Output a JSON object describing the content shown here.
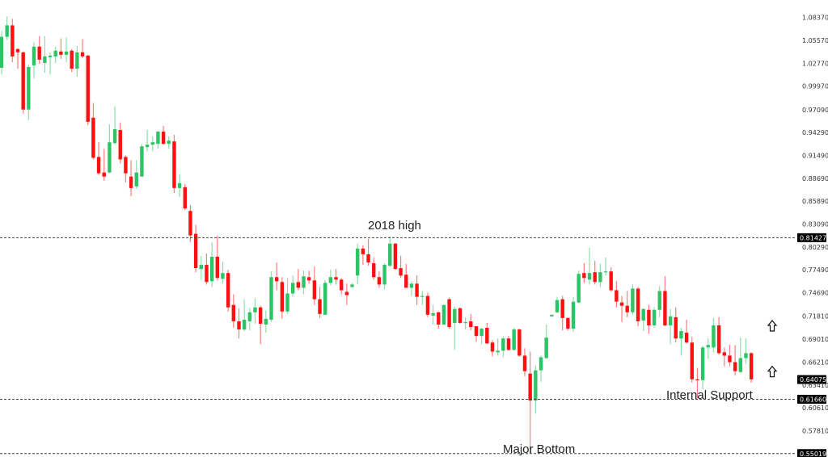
{
  "chart_data": {
    "type": "candlestick",
    "title": "",
    "xlabel": "",
    "ylabel": "",
    "ylim": [
      0.546,
      1.105
    ],
    "grid": false,
    "colors": {
      "up": "#2ec466",
      "down": "#ff1010",
      "level_line": "#444444",
      "label_bg": "#000000"
    },
    "y_ticks": [
      "1.08370",
      "1.05570",
      "1.02770",
      "0.99970",
      "0.97090",
      "0.94290",
      "0.91490",
      "0.88690",
      "0.85890",
      "0.83090",
      "0.80290",
      "0.77490",
      "0.74690",
      "0.71810",
      "0.69010",
      "0.66210",
      "0.63410",
      "0.60610",
      "0.57810"
    ],
    "levels": [
      {
        "value": 0.81427,
        "label": "0.81427",
        "annotation": "2018 high"
      },
      {
        "value": 0.6166,
        "label": "0.61660",
        "annotation": "Internal Support"
      },
      {
        "value": 0.55019,
        "label": "0.55019",
        "annotation": "Major Bottom"
      }
    ],
    "current_price": {
      "value": 0.64075,
      "label": "0.64075"
    },
    "markers": [
      {
        "type": "up-arrow",
        "price": 0.706
      },
      {
        "type": "up-arrow",
        "price": 0.65
      }
    ],
    "ohlc_columns": [
      "open",
      "high",
      "low",
      "close"
    ],
    "candles": [
      [
        1.022,
        1.067,
        1.014,
        1.06
      ],
      [
        1.06,
        1.085,
        1.056,
        1.074
      ],
      [
        1.074,
        1.082,
        1.029,
        1.036
      ],
      [
        1.045,
        1.046,
        1.021,
        1.041
      ],
      [
        1.041,
        1.042,
        0.966,
        0.971
      ],
      [
        0.971,
        1.026,
        0.958,
        1.023
      ],
      [
        1.025,
        1.053,
        1.009,
        1.048
      ],
      [
        1.048,
        1.061,
        1.027,
        1.032
      ],
      [
        1.028,
        1.061,
        1.016,
        1.036
      ],
      [
        1.035,
        1.041,
        1.014,
        1.037
      ],
      [
        1.036,
        1.048,
        1.028,
        1.043
      ],
      [
        1.042,
        1.058,
        1.033,
        1.038
      ],
      [
        1.038,
        1.059,
        1.029,
        1.042
      ],
      [
        1.043,
        1.045,
        1.017,
        1.021
      ],
      [
        1.021,
        1.049,
        1.011,
        1.041
      ],
      [
        1.041,
        1.057,
        1.034,
        1.036
      ],
      [
        1.037,
        1.038,
        0.952,
        0.956
      ],
      [
        0.961,
        0.979,
        0.91,
        0.912
      ],
      [
        0.913,
        0.931,
        0.891,
        0.893
      ],
      [
        0.894,
        0.923,
        0.884,
        0.889
      ],
      [
        0.894,
        0.953,
        0.893,
        0.931
      ],
      [
        0.93,
        0.975,
        0.928,
        0.947
      ],
      [
        0.946,
        0.955,
        0.905,
        0.91
      ],
      [
        0.913,
        0.915,
        0.882,
        0.893
      ],
      [
        0.889,
        0.909,
        0.865,
        0.875
      ],
      [
        0.877,
        0.909,
        0.874,
        0.894
      ],
      [
        0.889,
        0.929,
        0.889,
        0.926
      ],
      [
        0.925,
        0.946,
        0.92,
        0.928
      ],
      [
        0.928,
        0.938,
        0.92,
        0.931
      ],
      [
        0.929,
        0.945,
        0.923,
        0.944
      ],
      [
        0.944,
        0.951,
        0.928,
        0.929
      ],
      [
        0.929,
        0.938,
        0.923,
        0.933
      ],
      [
        0.932,
        0.94,
        0.869,
        0.875
      ],
      [
        0.875,
        0.892,
        0.864,
        0.881
      ],
      [
        0.876,
        0.88,
        0.848,
        0.85
      ],
      [
        0.847,
        0.854,
        0.809,
        0.817
      ],
      [
        0.819,
        0.83,
        0.772,
        0.777
      ],
      [
        0.776,
        0.792,
        0.763,
        0.781
      ],
      [
        0.781,
        0.795,
        0.757,
        0.76
      ],
      [
        0.761,
        0.809,
        0.754,
        0.791
      ],
      [
        0.791,
        0.817,
        0.762,
        0.765
      ],
      [
        0.764,
        0.785,
        0.758,
        0.771
      ],
      [
        0.771,
        0.775,
        0.724,
        0.729
      ],
      [
        0.732,
        0.745,
        0.704,
        0.712
      ],
      [
        0.712,
        0.728,
        0.691,
        0.702
      ],
      [
        0.702,
        0.739,
        0.7,
        0.714
      ],
      [
        0.712,
        0.728,
        0.701,
        0.723
      ],
      [
        0.723,
        0.74,
        0.709,
        0.729
      ],
      [
        0.729,
        0.731,
        0.684,
        0.709
      ],
      [
        0.708,
        0.725,
        0.698,
        0.715
      ],
      [
        0.714,
        0.773,
        0.711,
        0.766
      ],
      [
        0.766,
        0.784,
        0.75,
        0.761
      ],
      [
        0.76,
        0.766,
        0.715,
        0.724
      ],
      [
        0.724,
        0.765,
        0.721,
        0.746
      ],
      [
        0.746,
        0.768,
        0.742,
        0.759
      ],
      [
        0.76,
        0.776,
        0.75,
        0.753
      ],
      [
        0.753,
        0.774,
        0.745,
        0.767
      ],
      [
        0.766,
        0.774,
        0.758,
        0.762
      ],
      [
        0.762,
        0.779,
        0.732,
        0.739
      ],
      [
        0.739,
        0.754,
        0.716,
        0.721
      ],
      [
        0.72,
        0.762,
        0.72,
        0.759
      ],
      [
        0.759,
        0.775,
        0.756,
        0.766
      ],
      [
        0.766,
        0.776,
        0.757,
        0.763
      ],
      [
        0.763,
        0.765,
        0.745,
        0.75
      ],
      [
        0.748,
        0.758,
        0.732,
        0.744
      ],
      [
        0.754,
        0.759,
        0.753,
        0.757
      ],
      [
        0.768,
        0.807,
        0.757,
        0.801
      ],
      [
        0.801,
        0.805,
        0.781,
        0.794
      ],
      [
        0.794,
        0.813,
        0.78,
        0.784
      ],
      [
        0.783,
        0.79,
        0.763,
        0.766
      ],
      [
        0.766,
        0.773,
        0.753,
        0.757
      ],
      [
        0.757,
        0.783,
        0.751,
        0.781
      ],
      [
        0.78,
        0.816,
        0.778,
        0.807
      ],
      [
        0.807,
        0.808,
        0.775,
        0.776
      ],
      [
        0.777,
        0.792,
        0.765,
        0.768
      ],
      [
        0.769,
        0.782,
        0.753,
        0.753
      ],
      [
        0.753,
        0.761,
        0.743,
        0.758
      ],
      [
        0.758,
        0.768,
        0.732,
        0.742
      ],
      [
        0.742,
        0.749,
        0.732,
        0.743
      ],
      [
        0.743,
        0.747,
        0.717,
        0.72
      ],
      [
        0.719,
        0.732,
        0.708,
        0.722
      ],
      [
        0.723,
        0.724,
        0.703,
        0.708
      ],
      [
        0.708,
        0.732,
        0.707,
        0.732
      ],
      [
        0.739,
        0.741,
        0.703,
        0.705
      ],
      [
        0.71,
        0.73,
        0.677,
        0.727
      ],
      [
        0.728,
        0.729,
        0.709,
        0.71
      ],
      [
        0.71,
        0.717,
        0.702,
        0.711
      ],
      [
        0.712,
        0.721,
        0.701,
        0.705
      ],
      [
        0.706,
        0.706,
        0.687,
        0.694
      ],
      [
        0.694,
        0.704,
        0.684,
        0.703
      ],
      [
        0.704,
        0.71,
        0.684,
        0.685
      ],
      [
        0.686,
        0.689,
        0.669,
        0.675
      ],
      [
        0.674,
        0.691,
        0.67,
        0.676
      ],
      [
        0.676,
        0.694,
        0.668,
        0.691
      ],
      [
        0.691,
        0.694,
        0.676,
        0.677
      ],
      [
        0.677,
        0.704,
        0.676,
        0.702
      ],
      [
        0.702,
        0.703,
        0.669,
        0.67
      ],
      [
        0.67,
        0.679,
        0.645,
        0.651
      ],
      [
        0.648,
        0.675,
        0.55,
        0.615
      ],
      [
        0.615,
        0.658,
        0.599,
        0.652
      ],
      [
        0.652,
        0.67,
        0.638,
        0.668
      ],
      [
        0.667,
        0.708,
        0.666,
        0.692
      ],
      [
        0.718,
        0.72,
        0.718,
        0.72
      ],
      [
        0.723,
        0.742,
        0.722,
        0.738
      ],
      [
        0.739,
        0.743,
        0.701,
        0.716
      ],
      [
        0.716,
        0.717,
        0.701,
        0.703
      ],
      [
        0.703,
        0.742,
        0.699,
        0.736
      ],
      [
        0.735,
        0.774,
        0.734,
        0.77
      ],
      [
        0.771,
        0.783,
        0.759,
        0.765
      ],
      [
        0.763,
        0.802,
        0.757,
        0.771
      ],
      [
        0.772,
        0.786,
        0.757,
        0.76
      ],
      [
        0.76,
        0.782,
        0.754,
        0.772
      ],
      [
        0.772,
        0.79,
        0.768,
        0.773
      ],
      [
        0.773,
        0.778,
        0.748,
        0.75
      ],
      [
        0.75,
        0.761,
        0.729,
        0.736
      ],
      [
        0.735,
        0.743,
        0.711,
        0.731
      ],
      [
        0.731,
        0.749,
        0.717,
        0.723
      ],
      [
        0.723,
        0.757,
        0.72,
        0.752
      ],
      [
        0.752,
        0.754,
        0.706,
        0.712
      ],
      [
        0.713,
        0.728,
        0.7,
        0.727
      ],
      [
        0.726,
        0.732,
        0.697,
        0.707
      ],
      [
        0.707,
        0.729,
        0.704,
        0.726
      ],
      [
        0.726,
        0.755,
        0.717,
        0.749
      ],
      [
        0.749,
        0.767,
        0.706,
        0.707
      ],
      [
        0.707,
        0.727,
        0.684,
        0.718
      ],
      [
        0.717,
        0.729,
        0.686,
        0.691
      ],
      [
        0.691,
        0.704,
        0.67,
        0.7
      ],
      [
        0.698,
        0.714,
        0.685,
        0.686
      ],
      [
        0.686,
        0.693,
        0.637,
        0.641
      ],
      [
        0.641,
        0.655,
        0.618,
        0.64
      ],
      [
        0.64,
        0.682,
        0.629,
        0.68
      ],
      [
        0.68,
        0.691,
        0.666,
        0.683
      ],
      [
        0.68,
        0.716,
        0.674,
        0.707
      ],
      [
        0.707,
        0.717,
        0.671,
        0.673
      ],
      [
        0.674,
        0.68,
        0.657,
        0.67
      ],
      [
        0.67,
        0.683,
        0.657,
        0.662
      ],
      [
        0.662,
        0.683,
        0.646,
        0.651
      ],
      [
        0.65,
        0.692,
        0.649,
        0.667
      ],
      [
        0.667,
        0.691,
        0.66,
        0.673
      ],
      [
        0.673,
        0.674,
        0.637,
        0.641
      ]
    ]
  }
}
